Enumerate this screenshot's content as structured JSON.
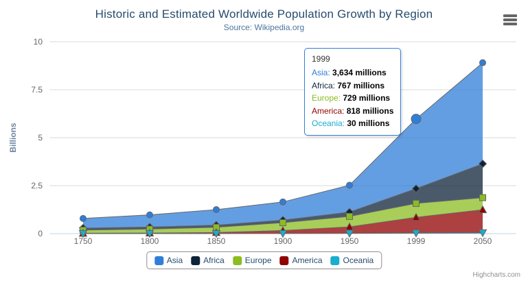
{
  "chart_data": {
    "type": "area",
    "stacking": "normal",
    "title": "Historic and Estimated Worldwide Population Growth by Region",
    "subtitle": "Source: Wikipedia.org",
    "categories": [
      "1750",
      "1800",
      "1850",
      "1900",
      "1950",
      "1999",
      "2050"
    ],
    "series": [
      {
        "name": "Asia",
        "color": "#2f7ed8",
        "marker": "circle",
        "values": [
          502,
          635,
          809,
          947,
          1402,
          3634,
          5268
        ]
      },
      {
        "name": "Africa",
        "color": "#0d233a",
        "marker": "diamond",
        "values": [
          106,
          107,
          111,
          133,
          221,
          767,
          1766
        ]
      },
      {
        "name": "Europe",
        "color": "#8bbc21",
        "marker": "square",
        "values": [
          163,
          203,
          276,
          408,
          547,
          729,
          628
        ]
      },
      {
        "name": "America",
        "color": "#910000",
        "marker": "triangle",
        "values": [
          18,
          31,
          54,
          156,
          339,
          818,
          1201
        ]
      },
      {
        "name": "Oceania",
        "color": "#1aadce",
        "marker": "triangle-down",
        "values": [
          2,
          2,
          2,
          6,
          13,
          30,
          46
        ]
      }
    ],
    "value_unit": "millions",
    "xlabel": "",
    "ylabel": "Billions",
    "ylim": [
      0,
      10
    ],
    "yticks": [
      0,
      2.5,
      5,
      7.5,
      10
    ],
    "grid": true,
    "legend_position": "bottom-center",
    "fill_opacity": 0.75,
    "line_color": "#666666",
    "hover": {
      "series": "Asia",
      "category": "1999"
    }
  },
  "tooltip": {
    "header": "1999",
    "rows": [
      {
        "name": "Asia",
        "color": "#2f7ed8",
        "value": "3,634 millions"
      },
      {
        "name": "Africa",
        "color": "#0d233a",
        "value": "767 millions"
      },
      {
        "name": "Europe",
        "color": "#8bbc21",
        "value": "729 millions"
      },
      {
        "name": "America",
        "color": "#910000",
        "value": "818 millions"
      },
      {
        "name": "Oceania",
        "color": "#1aadce",
        "value": "30 millions"
      }
    ]
  },
  "credits": "Highcharts.com",
  "ui": {
    "menu_icon": "hamburger-icon"
  },
  "theme": {
    "title_color": "#274b6d",
    "subtitle_color": "#4d759e",
    "axis_title_color": "#6d869f",
    "axis_label_color": "#666666",
    "grid_color": "#d8d8d8",
    "axis_line_color": "#c0d0e0",
    "legend_border_color": "#909090",
    "legend_text_color": "#274b6d",
    "tooltip_border_color": "#2f7ed8",
    "credits_color": "#909090"
  }
}
